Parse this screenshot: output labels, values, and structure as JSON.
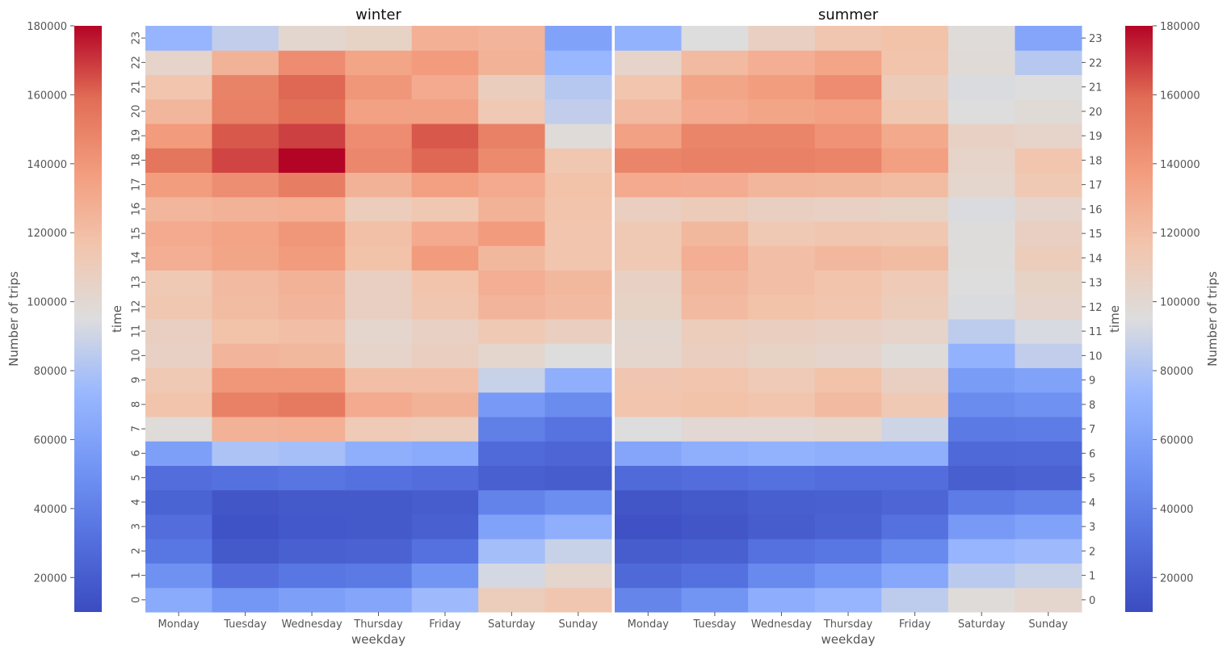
{
  "chart_data": {
    "type": "heatmap",
    "colormap": "coolwarm",
    "value_range": [
      10000,
      180000
    ],
    "x_categories": [
      "Monday",
      "Tuesday",
      "Wednesday",
      "Thursday",
      "Friday",
      "Saturday",
      "Sunday"
    ],
    "y_categories": [
      "0",
      "1",
      "2",
      "3",
      "4",
      "5",
      "6",
      "7",
      "8",
      "9",
      "10",
      "11",
      "12",
      "13",
      "14",
      "15",
      "16",
      "17",
      "18",
      "19",
      "20",
      "21",
      "22",
      "23"
    ],
    "colorbar": {
      "label": "Number of trips",
      "ticks": [
        20000,
        40000,
        60000,
        80000,
        100000,
        120000,
        140000,
        160000,
        180000
      ]
    },
    "panels": [
      {
        "title": "winter",
        "xlabel": "weekday",
        "ylabel": "time",
        "values": [
          [
            65000,
            53000,
            58000,
            62000,
            75000,
            110000,
            115000
          ],
          [
            50000,
            30000,
            35000,
            37000,
            52000,
            92000,
            102000
          ],
          [
            35000,
            18000,
            22000,
            23000,
            32000,
            77000,
            88000
          ],
          [
            30000,
            14000,
            17000,
            18000,
            22000,
            60000,
            68000
          ],
          [
            24000,
            16000,
            18000,
            18000,
            20000,
            42000,
            48000
          ],
          [
            30000,
            32000,
            34000,
            32000,
            30000,
            22000,
            20000
          ],
          [
            58000,
            80000,
            78000,
            68000,
            65000,
            28000,
            25000
          ],
          [
            97000,
            126000,
            127000,
            112000,
            110000,
            40000,
            33000
          ],
          [
            117000,
            150000,
            153000,
            130000,
            126000,
            55000,
            47000
          ],
          [
            113000,
            140000,
            140000,
            120000,
            120000,
            88000,
            68000
          ],
          [
            106000,
            125000,
            123000,
            104000,
            108000,
            102000,
            95000
          ],
          [
            107000,
            118000,
            120000,
            102000,
            106000,
            113000,
            108000
          ],
          [
            114000,
            121000,
            125000,
            107000,
            115000,
            125000,
            122000
          ],
          [
            113000,
            122000,
            126000,
            107000,
            117000,
            128000,
            123000
          ],
          [
            128000,
            133000,
            138000,
            118000,
            138000,
            123000,
            116000
          ],
          [
            130000,
            134000,
            140000,
            119000,
            130000,
            138000,
            116000
          ],
          [
            124000,
            126000,
            127000,
            110000,
            114000,
            126000,
            117000
          ],
          [
            137000,
            144000,
            152000,
            126000,
            136000,
            130000,
            118000
          ],
          [
            155000,
            167000,
            180000,
            147000,
            160000,
            146000,
            114000
          ],
          [
            138000,
            163000,
            168000,
            145000,
            163000,
            150000,
            97000
          ],
          [
            124000,
            150000,
            158000,
            135000,
            135000,
            113000,
            86000
          ],
          [
            116000,
            149000,
            160000,
            140000,
            130000,
            109000,
            83000
          ],
          [
            104000,
            126000,
            145000,
            133000,
            138000,
            126000,
            73000
          ],
          [
            72000,
            86000,
            101000,
            105000,
            127000,
            125000,
            60000
          ]
        ]
      },
      {
        "title": "summer",
        "xlabel": "weekday",
        "ylabel": "time",
        "values": [
          [
            43000,
            52000,
            67000,
            72000,
            85000,
            97000,
            102000
          ],
          [
            27000,
            32000,
            45000,
            53000,
            63000,
            84000,
            88000
          ],
          [
            20000,
            22000,
            32000,
            35000,
            45000,
            72000,
            75000
          ],
          [
            13000,
            16000,
            20000,
            23000,
            32000,
            55000,
            60000
          ],
          [
            16000,
            18000,
            21000,
            22000,
            25000,
            38000,
            42000
          ],
          [
            28000,
            30000,
            32000,
            30000,
            30000,
            21000,
            23000
          ],
          [
            62000,
            68000,
            70000,
            68000,
            68000,
            27000,
            28000
          ],
          [
            95000,
            100000,
            100000,
            102000,
            90000,
            37000,
            38000
          ],
          [
            116000,
            118000,
            116000,
            122000,
            113000,
            47000,
            50000
          ],
          [
            115000,
            116000,
            112000,
            118000,
            107000,
            56000,
            60000
          ],
          [
            102000,
            108000,
            105000,
            103000,
            97000,
            70000,
            86000
          ],
          [
            101000,
            110000,
            108000,
            106000,
            104000,
            85000,
            93000
          ],
          [
            105000,
            122000,
            118000,
            116000,
            110000,
            94000,
            103000
          ],
          [
            106000,
            124000,
            120000,
            117000,
            112000,
            95000,
            105000
          ],
          [
            113000,
            128000,
            120000,
            123000,
            121000,
            96000,
            110000
          ],
          [
            113000,
            123000,
            113000,
            115000,
            114000,
            96000,
            107000
          ],
          [
            108000,
            111000,
            107000,
            106000,
            105000,
            94000,
            103000
          ],
          [
            130000,
            129000,
            124000,
            123000,
            121000,
            102000,
            113000
          ],
          [
            148000,
            150000,
            150000,
            148000,
            136000,
            104000,
            116000
          ],
          [
            135000,
            148000,
            148000,
            142000,
            131000,
            106000,
            104000
          ],
          [
            122000,
            130000,
            133000,
            135000,
            114000,
            95000,
            98000
          ],
          [
            116000,
            133000,
            137000,
            145000,
            111000,
            94000,
            95000
          ],
          [
            104000,
            122000,
            128000,
            133000,
            117000,
            98000,
            83000
          ],
          [
            70000,
            95000,
            107000,
            115000,
            118000,
            97000,
            62000
          ]
        ]
      }
    ]
  }
}
